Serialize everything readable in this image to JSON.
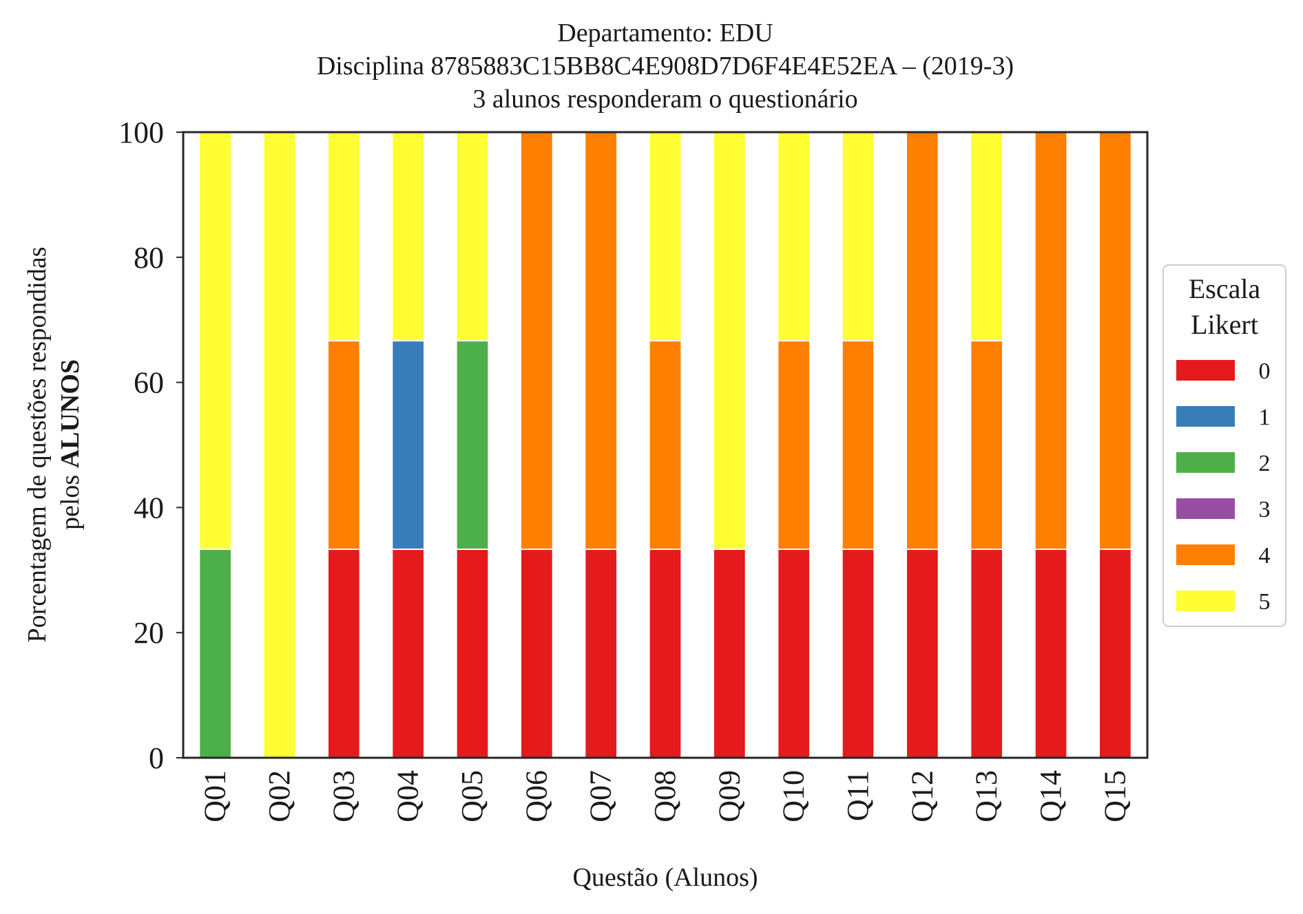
{
  "chart_data": {
    "type": "bar",
    "stacked": true,
    "title": [
      "Departamento: EDU",
      "Disciplina 8785883C15BB8C4E908D7D6F4E4E52EA – (2019-3)",
      "3 alunos responderam o questionário"
    ],
    "xlabel": "Questão (Alunos)",
    "ylabel_line1": "Porcentagem de questões respondidas",
    "ylabel_line2_prefix": "pelos ",
    "ylabel_line2_bold": "ALUNOS",
    "ylim": [
      0,
      100
    ],
    "yticks": [
      0,
      20,
      40,
      60,
      80,
      100
    ],
    "grid": false,
    "categories": [
      "Q01",
      "Q02",
      "Q03",
      "Q04",
      "Q05",
      "Q06",
      "Q07",
      "Q08",
      "Q09",
      "Q10",
      "Q11",
      "Q12",
      "Q13",
      "Q14",
      "Q15"
    ],
    "legend": {
      "title_line1": "Escala",
      "title_line2": "Likert",
      "placement": "center-right outside"
    },
    "series": [
      {
        "name": "0",
        "color": "#e41a1c",
        "values": [
          0,
          0,
          33.33,
          33.33,
          33.33,
          33.33,
          33.33,
          33.33,
          33.33,
          33.33,
          33.33,
          33.33,
          33.33,
          33.33,
          33.33
        ]
      },
      {
        "name": "1",
        "color": "#377eb8",
        "values": [
          0,
          0,
          0,
          33.33,
          0,
          0,
          0,
          0,
          0,
          0,
          0,
          0,
          0,
          0,
          0
        ]
      },
      {
        "name": "2",
        "color": "#4daf4a",
        "values": [
          33.33,
          0,
          0,
          0,
          33.33,
          0,
          0,
          0,
          0,
          0,
          0,
          0,
          0,
          0,
          0
        ]
      },
      {
        "name": "3",
        "color": "#984ea3",
        "values": [
          0,
          0,
          0,
          0,
          0,
          0,
          0,
          0,
          0,
          0,
          0,
          0,
          0,
          0,
          0
        ]
      },
      {
        "name": "4",
        "color": "#ff7f00",
        "values": [
          0,
          0,
          33.33,
          0,
          0,
          66.67,
          66.67,
          33.33,
          0,
          33.33,
          33.33,
          66.67,
          33.33,
          66.67,
          66.67
        ]
      },
      {
        "name": "5",
        "color": "#ffff33",
        "values": [
          66.67,
          100,
          33.33,
          33.33,
          33.33,
          0,
          0,
          33.33,
          66.67,
          33.33,
          33.33,
          0,
          33.33,
          0,
          0
        ]
      }
    ]
  }
}
